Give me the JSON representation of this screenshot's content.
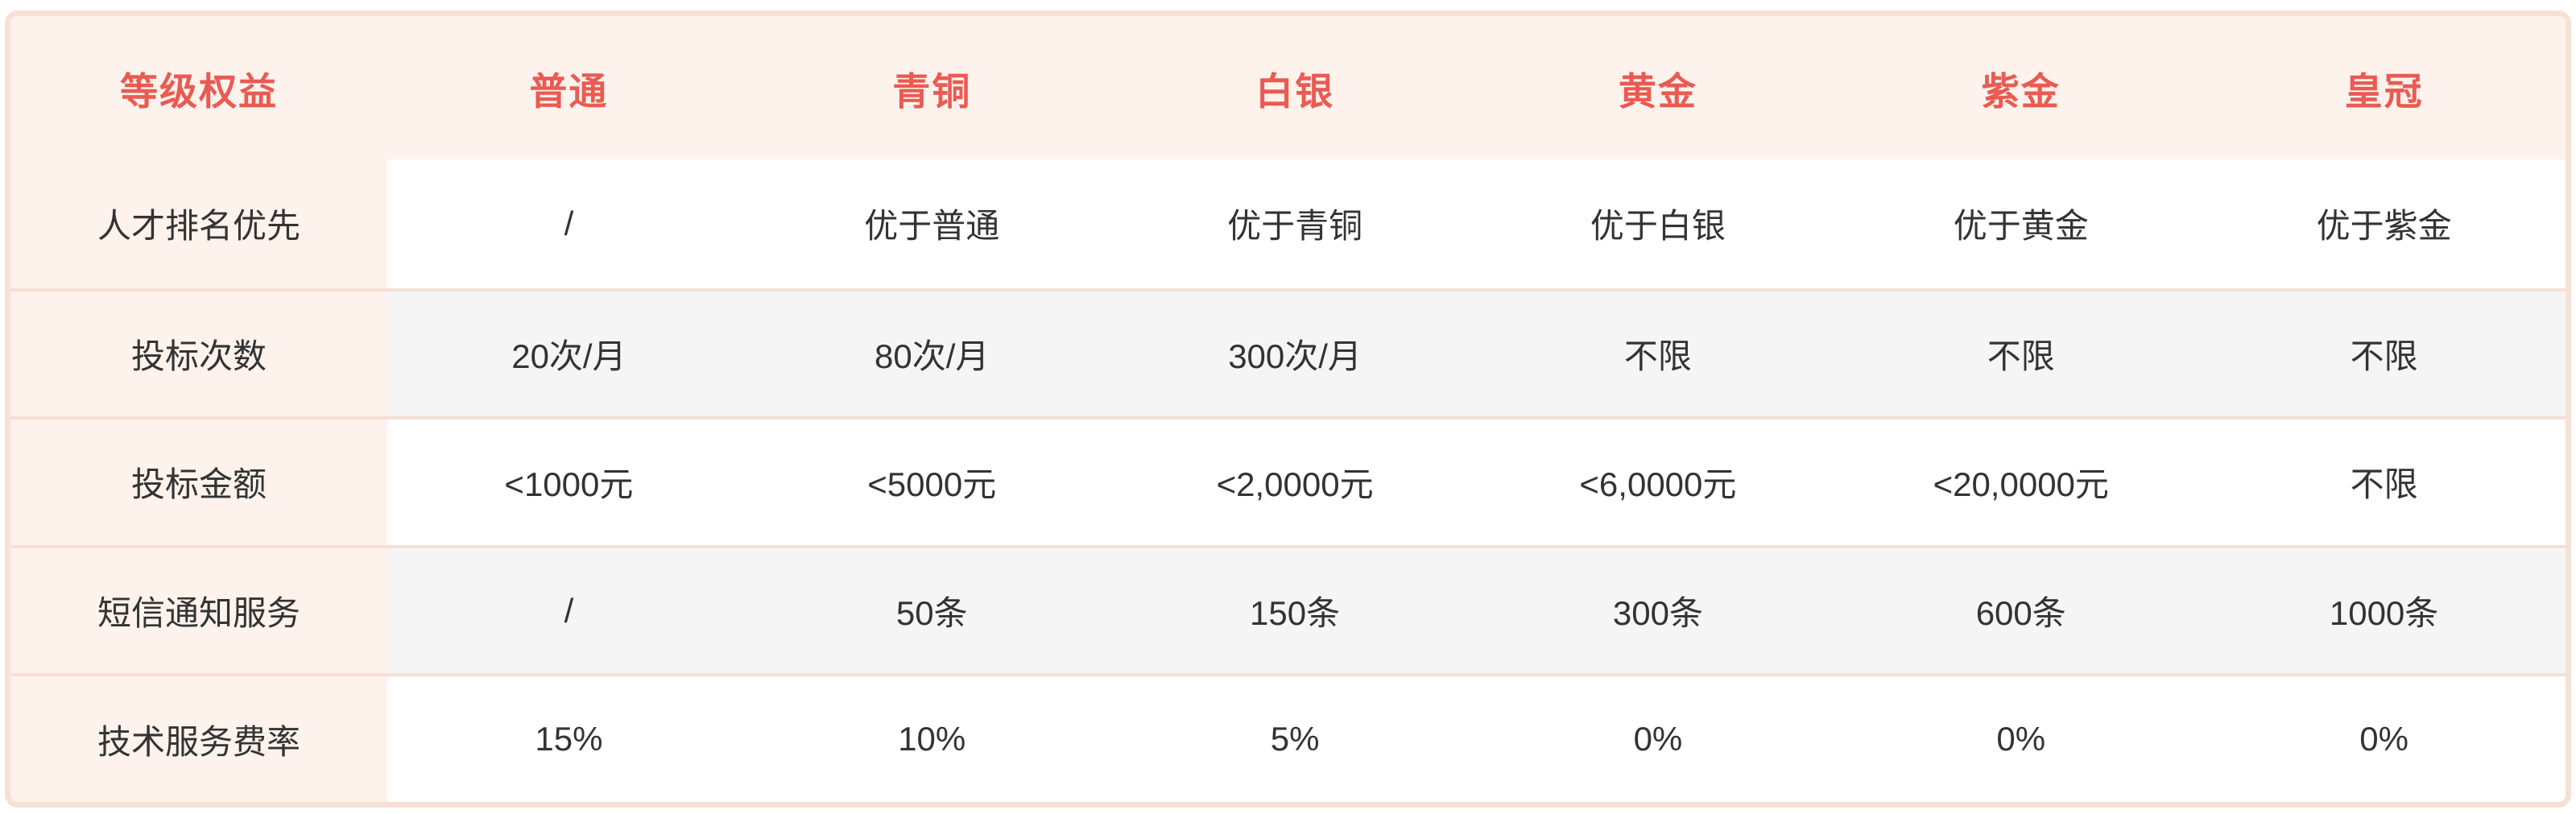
{
  "colors": {
    "accent_red": "#e95b53",
    "header_bg": "#fdf2ec",
    "label_column_bg": "#fdf2ec",
    "row_bg": "#ffffff",
    "row_alt_bg": "#f5f5f6",
    "outer_border": "#f7e1d7",
    "row_separator": "#f5e0d5",
    "text_dark": "#333333"
  },
  "table": {
    "header": [
      "等级权益",
      "普通",
      "青铜",
      "白银",
      "黄金",
      "紫金",
      "皇冠"
    ],
    "rows": [
      {
        "label": "人才排名优先",
        "values": [
          "/",
          "优于普通",
          "优于青铜",
          "优于白银",
          "优于黄金",
          "优于紫金"
        ]
      },
      {
        "label": "投标次数",
        "values": [
          "20次/月",
          "80次/月",
          "300次/月",
          "不限",
          "不限",
          "不限"
        ]
      },
      {
        "label": "投标金额",
        "values": [
          "<1000元",
          "<5000元",
          "<2,0000元",
          "<6,0000元",
          "<20,0000元",
          "不限"
        ]
      },
      {
        "label": "短信通知服务",
        "values": [
          "/",
          "50条",
          "150条",
          "300条",
          "600条",
          "1000条"
        ]
      },
      {
        "label": "技术服务费率",
        "values": [
          "15%",
          "10%",
          "5%",
          "0%",
          "0%",
          "0%"
        ]
      }
    ]
  }
}
